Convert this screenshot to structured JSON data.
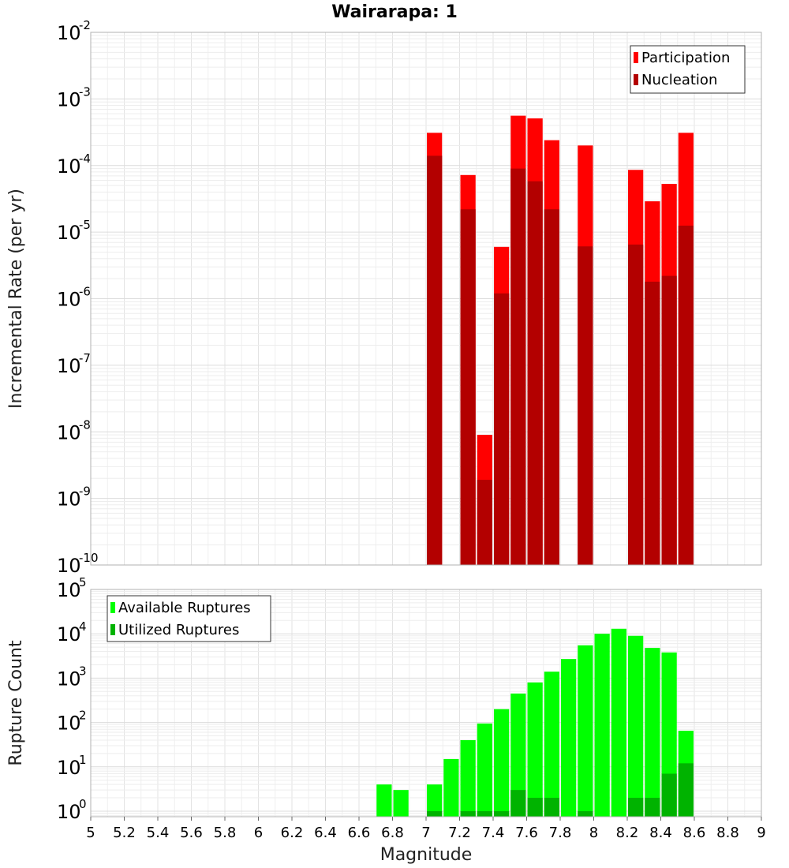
{
  "title": "Wairarapa: 1",
  "chart_data": [
    {
      "type": "bar",
      "ylabel": "Incremental Rate (per yr)",
      "yscale": "log",
      "ylim": [
        1e-10,
        0.01
      ],
      "xlim": [
        5,
        9
      ],
      "grid": true,
      "legend_position": "top-right",
      "x": [
        7.05,
        7.25,
        7.35,
        7.45,
        7.55,
        7.65,
        7.75,
        7.95,
        8.25,
        8.35,
        8.45,
        8.55
      ],
      "series": [
        {
          "name": "Participation",
          "color": "#ff0000",
          "values": [
            0.00031,
            7.2e-05,
            9e-09,
            6e-06,
            0.00056,
            0.00051,
            0.00024,
            0.0002,
            8.6e-05,
            2.9e-05,
            5.3e-05,
            0.00031
          ]
        },
        {
          "name": "Nucleation",
          "color": "#b30000",
          "values": [
            0.00014,
            2.2e-05,
            1.9e-09,
            1.2e-06,
            9e-05,
            5.8e-05,
            2.2e-05,
            6.1e-06,
            6.5e-06,
            1.8e-06,
            2.2e-06,
            1.25e-05
          ]
        }
      ]
    },
    {
      "type": "bar",
      "ylabel": "Rupture Count",
      "xlabel": "Magnitude",
      "yscale": "log",
      "ylim": [
        0.75,
        100000
      ],
      "xlim": [
        5,
        9
      ],
      "grid": true,
      "legend_position": "top-left",
      "x": [
        6.75,
        6.85,
        7.05,
        7.15,
        7.25,
        7.35,
        7.45,
        7.55,
        7.65,
        7.75,
        7.85,
        7.95,
        8.05,
        8.15,
        8.25,
        8.35,
        8.45,
        8.55
      ],
      "series": [
        {
          "name": "Available Ruptures",
          "color": "#00ff00",
          "values": [
            4,
            3,
            4,
            15,
            40,
            95,
            200,
            450,
            800,
            1400,
            2700,
            5500,
            10000,
            13000,
            9000,
            4800,
            3800,
            65
          ]
        },
        {
          "name": "Utilized Ruptures",
          "color": "#00b300",
          "values": [
            0,
            0,
            1,
            0,
            1,
            1,
            1,
            3,
            2,
            2,
            0,
            1,
            0,
            0,
            2,
            2,
            7,
            12
          ]
        }
      ]
    }
  ],
  "x_ticks": [
    "5",
    "5.2",
    "5.4",
    "5.6",
    "5.8",
    "6",
    "6.2",
    "6.4",
    "6.6",
    "6.8",
    "7",
    "7.2",
    "7.4",
    "7.6",
    "7.8",
    "8",
    "8.2",
    "8.4",
    "8.6",
    "8.8",
    "9"
  ],
  "top_y_ticks": [
    {
      "base": "10",
      "exp": "-10",
      "value": 1e-10
    },
    {
      "base": "10",
      "exp": "-9",
      "value": 1e-09
    },
    {
      "base": "10",
      "exp": "-8",
      "value": 1e-08
    },
    {
      "base": "10",
      "exp": "-7",
      "value": 1e-07
    },
    {
      "base": "10",
      "exp": "-6",
      "value": 1e-06
    },
    {
      "base": "10",
      "exp": "-5",
      "value": 1e-05
    },
    {
      "base": "10",
      "exp": "-4",
      "value": 0.0001
    },
    {
      "base": "10",
      "exp": "-3",
      "value": 0.001
    },
    {
      "base": "10",
      "exp": "-2",
      "value": 0.01
    }
  ],
  "bottom_y_ticks": [
    {
      "base": "10",
      "exp": "0",
      "value": 1
    },
    {
      "base": "10",
      "exp": "1",
      "value": 10
    },
    {
      "base": "10",
      "exp": "2",
      "value": 100
    },
    {
      "base": "10",
      "exp": "3",
      "value": 1000
    },
    {
      "base": "10",
      "exp": "4",
      "value": 10000
    },
    {
      "base": "10",
      "exp": "5",
      "value": 100000
    }
  ]
}
